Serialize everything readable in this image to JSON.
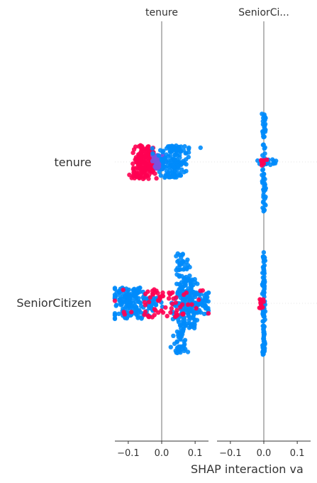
{
  "chart_data": {
    "type": "scatter",
    "kind": "shap-interaction-summary",
    "features": [
      "tenure",
      "SeniorCitizen"
    ],
    "panel_titles": [
      "tenure",
      "SeniorCi..."
    ],
    "xlabel": "SHAP interaction va",
    "xlim": [
      -0.14,
      0.14
    ],
    "xticks": [
      -0.1,
      0.0,
      0.1
    ],
    "xtick_labels": [
      "−0.1",
      "0.0",
      "0.1"
    ],
    "row_gridlines": "dotted",
    "zero_line": true,
    "colors": {
      "low": "#008bfb",
      "high": "#ff0052"
    },
    "distributions": [
      {
        "row": "tenure",
        "panel": "tenure",
        "clusters": [
          {
            "center": -0.058,
            "spread": 0.016,
            "width": 48,
            "n": 150,
            "color": "high"
          },
          {
            "center": -0.03,
            "spread": 0.006,
            "width": 32,
            "n": 40,
            "color": "high"
          },
          {
            "center": -0.01,
            "spread": 0.008,
            "width": 20,
            "n": 60,
            "color": "mid"
          },
          {
            "center": 0.04,
            "spread": 0.02,
            "width": 46,
            "n": 150,
            "color": "low"
          }
        ]
      },
      {
        "row": "tenure",
        "panel": "SeniorCi...",
        "clusters": [
          {
            "center": 0.0,
            "spread": 0.003,
            "width": 140,
            "n": 70,
            "color": "low"
          },
          {
            "center": 0.012,
            "spread": 0.015,
            "width": 8,
            "n": 20,
            "color": "low"
          },
          {
            "center": -0.004,
            "spread": 0.004,
            "width": 10,
            "n": 8,
            "color": "high"
          }
        ]
      },
      {
        "row": "SeniorCitizen",
        "panel": "tenure",
        "clusters": [
          {
            "center": -0.1,
            "spread": 0.03,
            "width": 44,
            "n": 150,
            "color": "low"
          },
          {
            "center": -0.03,
            "spread": 0.012,
            "width": 18,
            "n": 40,
            "color": "low"
          },
          {
            "center": 0.055,
            "spread": 0.012,
            "width": 140,
            "n": 140,
            "color": "low"
          },
          {
            "center": 0.08,
            "spread": 0.015,
            "width": 70,
            "n": 110,
            "color": "low"
          },
          {
            "center": 0.12,
            "spread": 0.015,
            "width": 30,
            "n": 50,
            "color": "low"
          },
          {
            "center": 0.0,
            "spread": 0.06,
            "width": 40,
            "n": 70,
            "color": "high"
          }
        ]
      },
      {
        "row": "SeniorCitizen",
        "panel": "SeniorCi...",
        "clusters": [
          {
            "center": 0.0,
            "spread": 0.002,
            "width": 145,
            "n": 110,
            "color": "low"
          },
          {
            "center": -0.008,
            "spread": 0.004,
            "width": 14,
            "n": 14,
            "color": "high"
          }
        ]
      }
    ]
  }
}
